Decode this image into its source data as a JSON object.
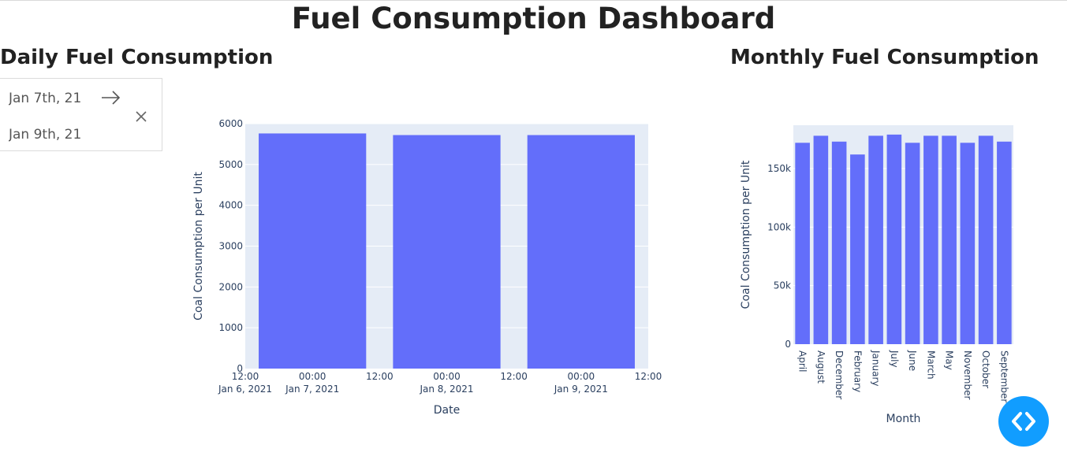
{
  "page": {
    "title": "Fuel Consumption Dashboard"
  },
  "daily": {
    "title": "Daily Fuel Consumption",
    "date_range": {
      "start": "Jan 7th, 21",
      "end": "Jan 9th, 21",
      "arrow_icon": "arrow-right-icon",
      "clear_icon": "close-icon"
    }
  },
  "monthly": {
    "title": "Monthly Fuel Consumption"
  },
  "fab": {
    "icon": "code-brackets-icon",
    "color": "#119dff"
  },
  "colors": {
    "bar": "#636efa",
    "plot_bg": "#e5ecf6",
    "text": "#2a3f5f"
  },
  "chart_data": [
    {
      "type": "bar",
      "xlabel": "Date",
      "ylabel": "Coal Consumption per Unit",
      "ylim": [
        0,
        6000
      ],
      "y_ticks": [
        "0",
        "1000",
        "2000",
        "3000",
        "4000",
        "5000",
        "6000"
      ],
      "x_ticks": [
        [
          "12:00",
          "Jan 6, 2021"
        ],
        [
          "00:00",
          "Jan 7, 2021"
        ],
        [
          "12:00",
          ""
        ],
        [
          "00:00",
          "Jan 8, 2021"
        ],
        [
          "12:00",
          ""
        ],
        [
          "00:00",
          "Jan 9, 2021"
        ],
        [
          "12:00",
          ""
        ]
      ],
      "categories": [
        "Jan 7, 2021",
        "Jan 8, 2021",
        "Jan 9, 2021"
      ],
      "values": [
        5760,
        5720,
        5720
      ],
      "grid": true
    },
    {
      "type": "bar",
      "xlabel": "Month",
      "ylabel": "Coal Consumption per Unit",
      "ylim": [
        0,
        187000
      ],
      "y_ticks": [
        "0",
        "50k",
        "100k",
        "150k"
      ],
      "categories": [
        "April",
        "August",
        "December",
        "February",
        "January",
        "July",
        "June",
        "March",
        "May",
        "November",
        "October",
        "September"
      ],
      "values": [
        172000,
        178000,
        173000,
        162000,
        178000,
        179000,
        172000,
        178000,
        178000,
        172000,
        178000,
        173000
      ],
      "grid": true
    }
  ]
}
